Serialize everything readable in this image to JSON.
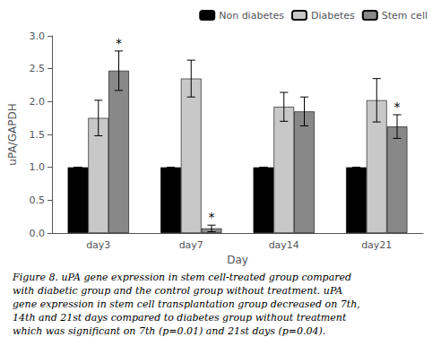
{
  "chart_data": {
    "type": "bar",
    "categories": [
      "day3",
      "day7",
      "day14",
      "day21"
    ],
    "series": [
      {
        "name": "Non diabetes",
        "color": "#000000",
        "values": [
          1.0,
          1.0,
          1.0,
          1.0
        ],
        "errors": [
          0.0,
          0.0,
          0.0,
          0.0
        ]
      },
      {
        "name": "Diabetes",
        "color": "#c8c8c8",
        "values": [
          1.75,
          2.35,
          1.92,
          2.02
        ],
        "errors": [
          0.27,
          0.28,
          0.22,
          0.33
        ]
      },
      {
        "name": "Stem cell",
        "color": "#888888",
        "values": [
          2.47,
          0.07,
          1.85,
          1.62
        ],
        "errors": [
          0.3,
          0.05,
          0.22,
          0.18
        ]
      }
    ],
    "xlabel": "Day",
    "ylabel": "uPA/GAPDH",
    "ylim": [
      0.0,
      3.0
    ],
    "yticks": [
      {
        "value": 0.0,
        "label": "0.0"
      },
      0.5,
      {
        "value": 1.0,
        "label": "1.0"
      },
      1.5,
      {
        "value": 2.0,
        "label": "2.0"
      },
      2.5,
      {
        "value": 3.0,
        "label": "3.0"
      }
    ],
    "annotations": [
      {
        "text": "*",
        "category": "day3",
        "series": "Stem cell"
      },
      {
        "text": "*",
        "category": "day7",
        "series": "Stem cell"
      },
      {
        "text": "*",
        "category": "day21",
        "series": "Stem cell"
      }
    ],
    "caption": "Figure 8. uPA gene expression in stem cell-treated group compared\nwith diabetic group and the control group without treatment. uPA\ngene expression in stem cell transplantation group decreased on 7th,\n14th and 21st days compared to diabetes group without treatment\nwhich was significant on 7th (p=0.01) and 21st days (p=0.04).",
    "legend": "upper right",
    "grid": false
  }
}
